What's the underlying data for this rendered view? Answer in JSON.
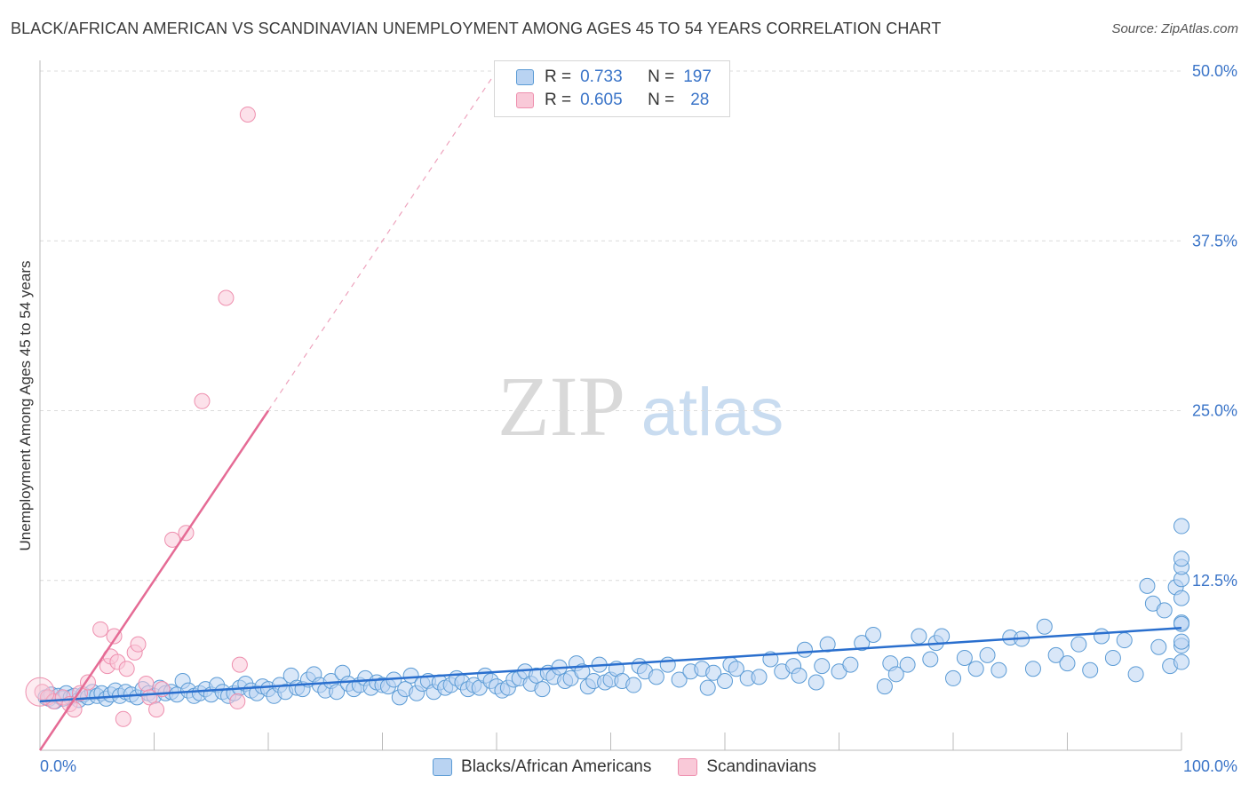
{
  "title": "BLACK/AFRICAN AMERICAN VS SCANDINAVIAN UNEMPLOYMENT AMONG AGES 45 TO 54 YEARS CORRELATION CHART",
  "source": "Source: ZipAtlas.com",
  "watermark": {
    "zip": "ZIP",
    "atlas": "atlas"
  },
  "stats_legend": [
    {
      "r_label": "R =",
      "r_value": "0.733",
      "n_label": "N =",
      "n_value": "197",
      "color": "#5b9bd5",
      "fill": "#b9d3f2"
    },
    {
      "r_label": "R =",
      "r_value": "0.605",
      "n_label": "N =",
      "n_value": "28",
      "color": "#ee8fae",
      "fill": "#f9c9d8"
    }
  ],
  "legend": [
    {
      "label": "Blacks/African Americans",
      "color": "#5b9bd5",
      "fill": "#b9d3f2"
    },
    {
      "label": "Scandinavians",
      "color": "#ee8fae",
      "fill": "#f9c9d8"
    }
  ],
  "chart_data": {
    "type": "scatter",
    "title": "BLACK/AFRICAN AMERICAN VS SCANDINAVIAN UNEMPLOYMENT AMONG AGES 45 TO 54 YEARS CORRELATION CHART",
    "xlabel": "",
    "ylabel": "Unemployment Among Ages 45 to 54 years",
    "xlim": [
      0,
      100
    ],
    "ylim": [
      0,
      50
    ],
    "x_tick_labels": [
      "0.0%",
      "100.0%"
    ],
    "y_tick_labels": [
      "12.5%",
      "25.0%",
      "37.5%",
      "50.0%"
    ],
    "y_ticks": [
      12.5,
      25.0,
      37.5,
      50.0
    ],
    "grid": "horizontal dashed",
    "series": [
      {
        "name": "Blacks/African Americans",
        "color": "#5b9bd5",
        "trend": {
          "x": [
            0,
            100
          ],
          "y": [
            3.6,
            9.0
          ]
        },
        "points": [
          [
            0.5,
            3.9
          ],
          [
            0.8,
            3.8
          ],
          [
            1,
            4.1
          ],
          [
            1.3,
            3.6
          ],
          [
            1.6,
            4.0
          ],
          [
            2,
            3.8
          ],
          [
            2.3,
            4.2
          ],
          [
            2.7,
            3.9
          ],
          [
            3,
            4.0
          ],
          [
            3.4,
            3.7
          ],
          [
            3.8,
            4.1
          ],
          [
            4.2,
            3.9
          ],
          [
            4.6,
            4.3
          ],
          [
            5,
            4.0
          ],
          [
            5.4,
            4.2
          ],
          [
            5.8,
            3.8
          ],
          [
            6.2,
            4.1
          ],
          [
            6.6,
            4.4
          ],
          [
            7,
            4.0
          ],
          [
            7.5,
            4.3
          ],
          [
            8,
            4.1
          ],
          [
            8.5,
            3.9
          ],
          [
            9,
            4.5
          ],
          [
            9.5,
            4.2
          ],
          [
            10,
            4.0
          ],
          [
            10.5,
            4.6
          ],
          [
            11,
            4.2
          ],
          [
            11.5,
            4.3
          ],
          [
            12,
            4.1
          ],
          [
            12.5,
            5.1
          ],
          [
            13,
            4.4
          ],
          [
            13.5,
            4.0
          ],
          [
            14,
            4.2
          ],
          [
            14.5,
            4.5
          ],
          [
            15,
            4.1
          ],
          [
            15.5,
            4.8
          ],
          [
            16,
            4.3
          ],
          [
            16.5,
            4.0
          ],
          [
            17,
            4.2
          ],
          [
            17.5,
            4.6
          ],
          [
            18,
            4.9
          ],
          [
            18.5,
            4.4
          ],
          [
            19,
            4.2
          ],
          [
            19.5,
            4.7
          ],
          [
            20,
            4.5
          ],
          [
            20.5,
            4.0
          ],
          [
            21,
            4.8
          ],
          [
            21.5,
            4.3
          ],
          [
            22,
            5.5
          ],
          [
            22.5,
            4.6
          ],
          [
            23,
            4.5
          ],
          [
            23.5,
            5.2
          ],
          [
            24,
            5.6
          ],
          [
            24.5,
            4.8
          ],
          [
            25,
            4.4
          ],
          [
            25.5,
            5.1
          ],
          [
            26,
            4.3
          ],
          [
            26.5,
            5.7
          ],
          [
            27,
            4.9
          ],
          [
            27.5,
            4.5
          ],
          [
            28,
            4.8
          ],
          [
            28.5,
            5.3
          ],
          [
            29,
            4.6
          ],
          [
            29.5,
            5.0
          ],
          [
            30,
            4.8
          ],
          [
            30.5,
            4.7
          ],
          [
            31,
            5.2
          ],
          [
            31.5,
            3.9
          ],
          [
            32,
            4.5
          ],
          [
            32.5,
            5.5
          ],
          [
            33,
            4.2
          ],
          [
            33.5,
            4.9
          ],
          [
            34,
            5.1
          ],
          [
            34.5,
            4.3
          ],
          [
            35,
            5.0
          ],
          [
            35.5,
            4.6
          ],
          [
            36,
            4.8
          ],
          [
            36.5,
            5.3
          ],
          [
            37,
            5.0
          ],
          [
            37.5,
            4.5
          ],
          [
            38,
            4.8
          ],
          [
            38.5,
            4.6
          ],
          [
            39,
            5.5
          ],
          [
            39.5,
            5.1
          ],
          [
            40,
            4.7
          ],
          [
            40.5,
            4.4
          ],
          [
            41,
            4.6
          ],
          [
            41.5,
            5.2
          ],
          [
            42,
            5.3
          ],
          [
            42.5,
            5.8
          ],
          [
            43,
            4.9
          ],
          [
            43.5,
            5.5
          ],
          [
            44,
            4.5
          ],
          [
            44.5,
            5.7
          ],
          [
            45,
            5.4
          ],
          [
            45.5,
            6.1
          ],
          [
            46,
            5.1
          ],
          [
            46.5,
            5.3
          ],
          [
            47,
            6.4
          ],
          [
            47.5,
            5.8
          ],
          [
            48,
            4.7
          ],
          [
            48.5,
            5.1
          ],
          [
            49,
            6.3
          ],
          [
            49.5,
            5.0
          ],
          [
            50,
            5.2
          ],
          [
            50.5,
            6.0
          ],
          [
            51,
            5.1
          ],
          [
            52,
            4.8
          ],
          [
            52.5,
            6.2
          ],
          [
            53,
            5.8
          ],
          [
            54,
            5.4
          ],
          [
            55,
            6.3
          ],
          [
            56,
            5.2
          ],
          [
            57,
            5.8
          ],
          [
            58,
            6.0
          ],
          [
            58.5,
            4.6
          ],
          [
            59,
            5.7
          ],
          [
            60,
            5.1
          ],
          [
            60.5,
            6.3
          ],
          [
            61,
            6.0
          ],
          [
            62,
            5.3
          ],
          [
            63,
            5.4
          ],
          [
            64,
            6.7
          ],
          [
            65,
            5.8
          ],
          [
            66,
            6.2
          ],
          [
            66.5,
            5.5
          ],
          [
            67,
            7.4
          ],
          [
            68,
            5.0
          ],
          [
            68.5,
            6.2
          ],
          [
            69,
            7.8
          ],
          [
            70,
            5.8
          ],
          [
            71,
            6.3
          ],
          [
            72,
            7.9
          ],
          [
            73,
            8.5
          ],
          [
            74,
            4.7
          ],
          [
            74.5,
            6.4
          ],
          [
            75,
            5.6
          ],
          [
            76,
            6.3
          ],
          [
            77,
            8.4
          ],
          [
            78,
            6.7
          ],
          [
            78.5,
            7.9
          ],
          [
            79,
            8.4
          ],
          [
            80,
            5.3
          ],
          [
            81,
            6.8
          ],
          [
            82,
            6.0
          ],
          [
            83,
            7.0
          ],
          [
            84,
            5.9
          ],
          [
            85,
            8.3
          ],
          [
            86,
            8.2
          ],
          [
            87,
            6.0
          ],
          [
            88,
            9.1
          ],
          [
            89,
            7.0
          ],
          [
            90,
            6.4
          ],
          [
            91,
            7.8
          ],
          [
            92,
            5.9
          ],
          [
            93,
            8.4
          ],
          [
            94,
            6.8
          ],
          [
            95,
            8.1
          ],
          [
            96,
            5.6
          ],
          [
            97,
            12.1
          ],
          [
            97.5,
            10.8
          ],
          [
            98,
            7.6
          ],
          [
            98.5,
            10.3
          ],
          [
            99,
            6.2
          ],
          [
            99.5,
            12.0
          ],
          [
            100,
            9.4
          ],
          [
            100,
            6.5
          ],
          [
            100,
            7.7
          ],
          [
            100,
            11.2
          ],
          [
            100,
            12.6
          ],
          [
            100,
            13.5
          ],
          [
            100,
            16.5
          ],
          [
            100,
            14.1
          ],
          [
            100,
            8.0
          ],
          [
            100,
            9.3
          ]
        ]
      },
      {
        "name": "Scandinavians",
        "color": "#ee8fae",
        "trend": {
          "x": [
            0,
            20
          ],
          "y": [
            0,
            25.0
          ]
        },
        "trend_extension": {
          "x": [
            20,
            40
          ],
          "y": [
            25.0,
            50.0
          ]
        },
        "points": [
          [
            0.2,
            4.3
          ],
          [
            0.7,
            3.9
          ],
          [
            1.2,
            3.6
          ],
          [
            2,
            3.9
          ],
          [
            2.6,
            3.4
          ],
          [
            3,
            3.0
          ],
          [
            3.5,
            4.2
          ],
          [
            4.2,
            5.0
          ],
          [
            5.3,
            8.9
          ],
          [
            5.9,
            6.2
          ],
          [
            6.2,
            6.9
          ],
          [
            6.5,
            8.4
          ],
          [
            6.8,
            6.5
          ],
          [
            7.3,
            2.3
          ],
          [
            7.6,
            6.0
          ],
          [
            8.3,
            7.2
          ],
          [
            8.6,
            7.8
          ],
          [
            9.3,
            4.9
          ],
          [
            9.6,
            3.9
          ],
          [
            10.2,
            3.0
          ],
          [
            10.7,
            4.5
          ],
          [
            11.6,
            15.5
          ],
          [
            12.8,
            16.0
          ],
          [
            14.2,
            25.7
          ],
          [
            16.3,
            33.3
          ],
          [
            17.3,
            3.6
          ],
          [
            17.5,
            6.3
          ],
          [
            18.2,
            46.8
          ]
        ]
      }
    ]
  }
}
